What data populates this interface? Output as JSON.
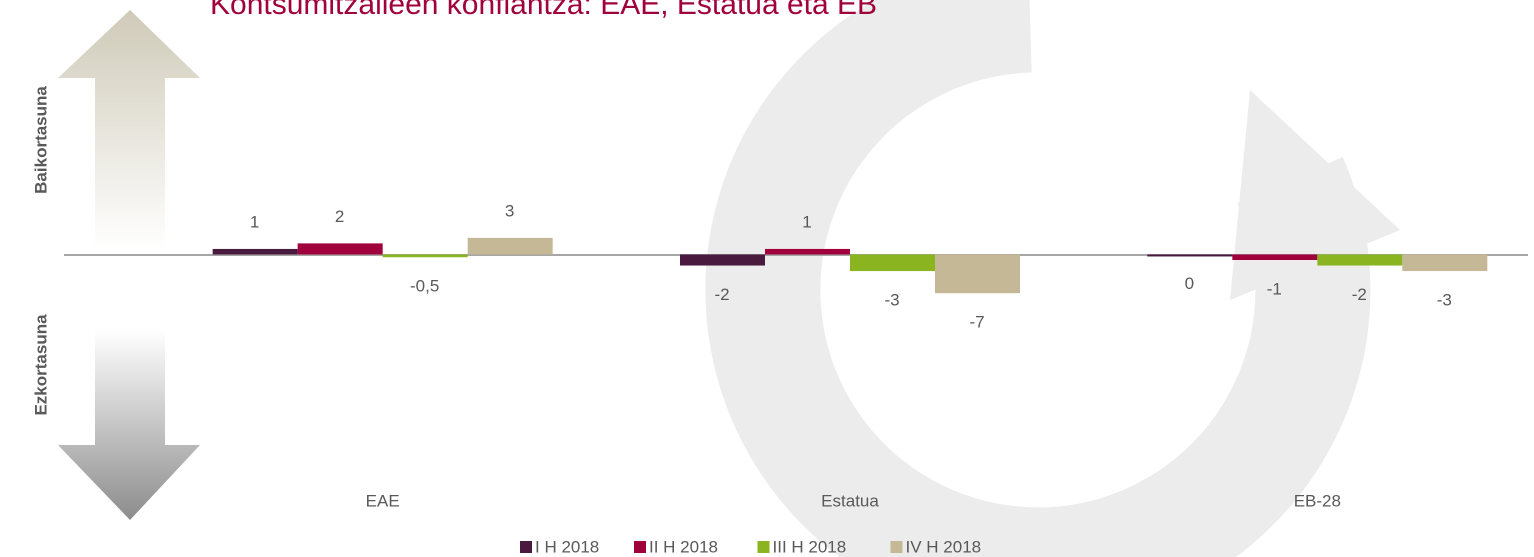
{
  "chart_data": {
    "type": "bar",
    "title": "Kontsumitzaileen konfiantza: EAE, Estatua eta EB",
    "y_label_top": "Baikortasuna",
    "y_label_bottom": "Ezkortasuna",
    "categories": [
      "EAE",
      "Estatua",
      "EB-28"
    ],
    "series": [
      {
        "name": "I H 2018",
        "color": "#4a1a3e",
        "values": [
          1,
          -2,
          0
        ]
      },
      {
        "name": "II H 2018",
        "color": "#a0003c",
        "values": [
          2,
          1,
          -1
        ]
      },
      {
        "name": "III H 2018",
        "color": "#8ab520",
        "values": [
          -0.5,
          -3,
          -2
        ],
        "value_labels": [
          "-0,5",
          "-3",
          "-2"
        ]
      },
      {
        "name": "IV H 2018",
        "color": "#c4b896",
        "values": [
          3,
          -7,
          -3
        ]
      }
    ],
    "ylim": [
      -48,
      46
    ],
    "legend": "bottom"
  }
}
